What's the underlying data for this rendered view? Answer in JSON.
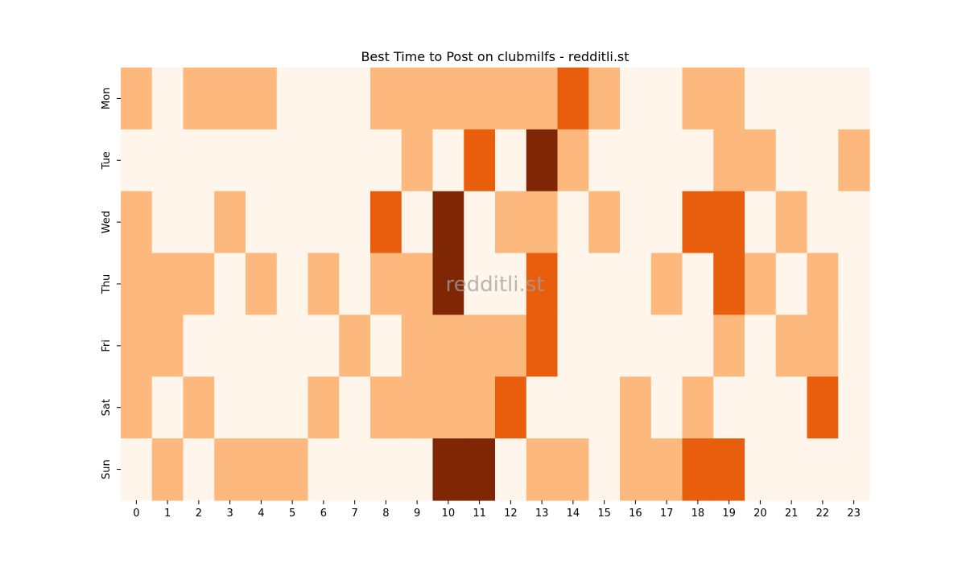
{
  "chart_data": {
    "type": "heatmap",
    "title": "Best Time to Post on clubmilfs - redditli.st",
    "watermark": "redditli.st",
    "xlabel": "",
    "ylabel": "",
    "x_categories": [
      "0",
      "1",
      "2",
      "3",
      "4",
      "5",
      "6",
      "7",
      "8",
      "9",
      "10",
      "11",
      "12",
      "13",
      "14",
      "15",
      "16",
      "17",
      "18",
      "19",
      "20",
      "21",
      "22",
      "23"
    ],
    "y_categories": [
      "Mon",
      "Tue",
      "Wed",
      "Thu",
      "Fri",
      "Sat",
      "Sun"
    ],
    "colormap": "Oranges",
    "levels": {
      "0": "#fff5eb",
      "1": "#fdb97d",
      "2": "#e95e0d",
      "3": "#7f2704"
    },
    "values": [
      [
        1,
        0,
        1,
        1,
        1,
        0,
        0,
        0,
        1,
        1,
        1,
        1,
        1,
        1,
        2,
        1,
        0,
        0,
        1,
        1,
        0,
        0,
        0,
        0
      ],
      [
        0,
        0,
        0,
        0,
        0,
        0,
        0,
        0,
        0,
        1,
        0,
        2,
        0,
        3,
        1,
        0,
        0,
        0,
        0,
        1,
        1,
        0,
        0,
        1
      ],
      [
        1,
        0,
        0,
        1,
        0,
        0,
        0,
        0,
        2,
        0,
        3,
        0,
        1,
        1,
        0,
        1,
        0,
        0,
        2,
        2,
        0,
        1,
        0,
        0
      ],
      [
        1,
        1,
        1,
        0,
        1,
        0,
        1,
        0,
        1,
        1,
        3,
        0,
        0,
        2,
        0,
        0,
        0,
        1,
        0,
        2,
        1,
        0,
        1,
        0
      ],
      [
        1,
        1,
        0,
        0,
        0,
        0,
        0,
        1,
        0,
        1,
        1,
        1,
        1,
        2,
        0,
        0,
        0,
        0,
        0,
        1,
        0,
        1,
        1,
        0
      ],
      [
        1,
        0,
        1,
        0,
        0,
        0,
        1,
        0,
        1,
        1,
        1,
        1,
        2,
        0,
        0,
        0,
        1,
        0,
        1,
        0,
        0,
        0,
        2,
        0
      ],
      [
        0,
        1,
        0,
        1,
        1,
        1,
        0,
        0,
        0,
        0,
        3,
        3,
        0,
        1,
        1,
        0,
        1,
        1,
        2,
        2,
        0,
        0,
        0,
        0
      ]
    ],
    "legend": "none",
    "grid": false
  }
}
